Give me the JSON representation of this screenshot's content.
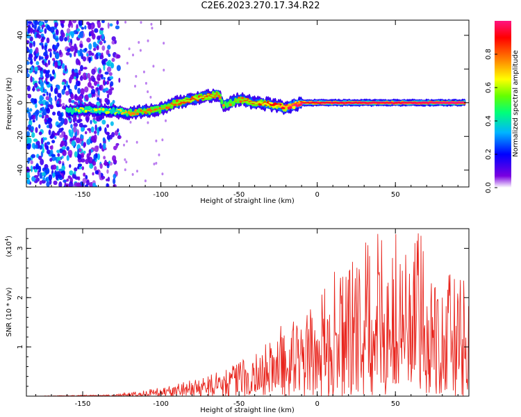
{
  "figure_title": "C2E6.2023.270.17.34.R22",
  "chart_data": [
    {
      "type": "heatmap",
      "title": "C2E6.2023.270.17.34.R22",
      "xlabel": "Height of straight line (km)",
      "ylabel": "Frequency (Hz)",
      "xlim": [
        -186,
        97
      ],
      "ylim": [
        -50,
        49
      ],
      "xticks": [
        -150,
        -100,
        -50,
        0,
        50
      ],
      "yticks": [
        -40,
        -20,
        0,
        20,
        40
      ],
      "colorbar": {
        "label": "Normalized spectral amplitude",
        "range": [
          0,
          1
        ],
        "ticks": [
          0.0,
          0.2,
          0.4,
          0.6,
          0.8
        ],
        "colormap": [
          "#ffffff",
          "#7a00e0",
          "#0000ff",
          "#00b4ff",
          "#00ff7a",
          "#64ff00",
          "#ffff00",
          "#ff8000",
          "#ff0000",
          "#ff1480"
        ]
      },
      "noise_region_x": [
        -186,
        -124
      ],
      "ridge": [
        {
          "x": -160,
          "y": -5,
          "amp": 0.3
        },
        {
          "x": -150,
          "y": -4,
          "amp": 0.35
        },
        {
          "x": -140,
          "y": -5,
          "amp": 0.32
        },
        {
          "x": -130,
          "y": -5,
          "amp": 0.3
        },
        {
          "x": -120,
          "y": -6,
          "amp": 0.45
        },
        {
          "x": -110,
          "y": -5,
          "amp": 0.5
        },
        {
          "x": -100,
          "y": -4,
          "amp": 0.48
        },
        {
          "x": -90,
          "y": 0,
          "amp": 0.52
        },
        {
          "x": -80,
          "y": 2,
          "amp": 0.55
        },
        {
          "x": -70,
          "y": 4,
          "amp": 0.55
        },
        {
          "x": -63,
          "y": 5,
          "amp": 0.5
        },
        {
          "x": -60,
          "y": -2,
          "amp": 0.45
        },
        {
          "x": -50,
          "y": 2,
          "amp": 0.5
        },
        {
          "x": -40,
          "y": 0,
          "amp": 0.55
        },
        {
          "x": -30,
          "y": -1,
          "amp": 0.6
        },
        {
          "x": -20,
          "y": -3,
          "amp": 0.65
        },
        {
          "x": -10,
          "y": 0,
          "amp": 0.8
        },
        {
          "x": 0,
          "y": 0,
          "amp": 0.85
        },
        {
          "x": 10,
          "y": 0,
          "amp": 0.88
        },
        {
          "x": 20,
          "y": 0,
          "amp": 0.88
        },
        {
          "x": 30,
          "y": 0,
          "amp": 0.9
        },
        {
          "x": 40,
          "y": 0,
          "amp": 0.9
        },
        {
          "x": 50,
          "y": 0,
          "amp": 0.88
        },
        {
          "x": 60,
          "y": 0,
          "amp": 0.9
        },
        {
          "x": 70,
          "y": 0,
          "amp": 0.92
        },
        {
          "x": 80,
          "y": 0,
          "amp": 0.95
        },
        {
          "x": 95,
          "y": 0,
          "amp": 0.95
        }
      ]
    },
    {
      "type": "line",
      "xlabel": "Height of straight line (km)",
      "ylabel": "SNR (10 * v/v)",
      "y_multiplier": "(x10",
      "y_multiplier_exp": "4",
      "y_multiplier_close": ")",
      "xlim": [
        -186,
        97
      ],
      "ylim": [
        0,
        3.4
      ],
      "xticks": [
        -150,
        -100,
        -50,
        0,
        50
      ],
      "yticks": [
        1,
        2,
        3
      ],
      "line_color": "#e8241c",
      "envelope": [
        {
          "x": -186,
          "y": 0.0
        },
        {
          "x": -130,
          "y": 0.03
        },
        {
          "x": -110,
          "y": 0.12
        },
        {
          "x": -90,
          "y": 0.25
        },
        {
          "x": -70,
          "y": 0.45
        },
        {
          "x": -50,
          "y": 0.7
        },
        {
          "x": -35,
          "y": 1.0
        },
        {
          "x": -25,
          "y": 1.45
        },
        {
          "x": -10,
          "y": 1.6
        },
        {
          "x": 0,
          "y": 1.9
        },
        {
          "x": 8,
          "y": 2.5
        },
        {
          "x": 20,
          "y": 2.6
        },
        {
          "x": 35,
          "y": 3.35
        },
        {
          "x": 50,
          "y": 3.3
        },
        {
          "x": 65,
          "y": 3.35
        },
        {
          "x": 80,
          "y": 2.6
        },
        {
          "x": 97,
          "y": 2.3
        }
      ]
    }
  ]
}
